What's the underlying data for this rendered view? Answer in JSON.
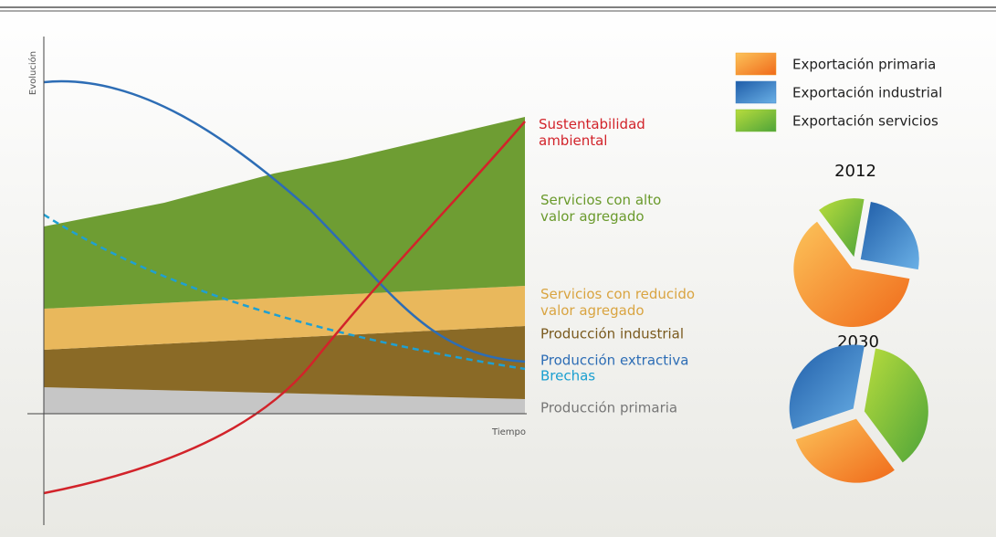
{
  "axis": {
    "y_label": "Evolución",
    "x_label": "Tiempo"
  },
  "labels": {
    "sustentabilidad": [
      "Sustentabilidad",
      "ambiental"
    ],
    "servicios_alto": [
      "Servicios  con alto",
      "valor agregado"
    ],
    "servicios_reducido": [
      "Servicios con reducido",
      "valor agregado"
    ],
    "produccion_industrial": "Producción industrial",
    "produccion_extractiva": "Producción extractiva",
    "brechas": "Brechas",
    "produccion_primaria": "Producción primaria"
  },
  "legend": [
    {
      "name": "Exportación primaria",
      "color": "#f39a1e"
    },
    {
      "name": "Exportación industrial",
      "color": "#3a7cc2"
    },
    {
      "name": "Exportación servicios",
      "color": "#7dbf3a"
    }
  ],
  "pies": [
    {
      "label": "2012",
      "values": [
        62,
        25,
        13
      ]
    },
    {
      "label": "2030",
      "values": [
        30,
        33,
        37
      ]
    }
  ]
}
